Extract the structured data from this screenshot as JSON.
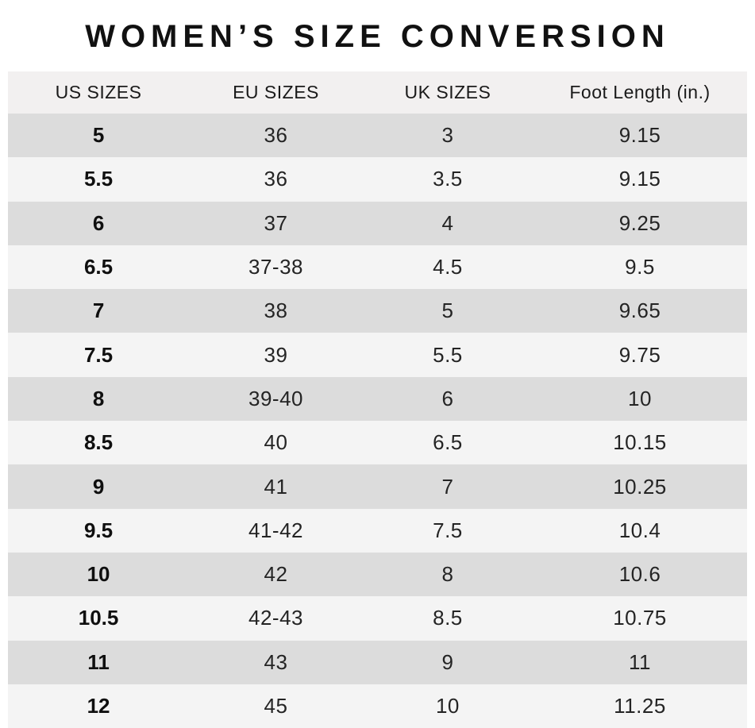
{
  "colors": {
    "page_bg": "#ffffff",
    "title_text": "#111111",
    "header_bg": "#f2f0f0",
    "header_text": "#1a1a1a",
    "row_dark": "#dcdcdc",
    "row_light": "#f4f4f4",
    "cell_text": "#242424",
    "us_text": "#0f0f0f"
  },
  "chart_data": {
    "type": "table",
    "title": "WOMEN’S SIZE CONVERSION",
    "columns": [
      "US SIZES",
      "EU SIZES",
      "UK SIZES",
      "Foot Length (in.)"
    ],
    "rows": [
      [
        "5",
        "36",
        "3",
        "9.15"
      ],
      [
        "5.5",
        "36",
        "3.5",
        "9.15"
      ],
      [
        "6",
        "37",
        "4",
        "9.25"
      ],
      [
        "6.5",
        "37-38",
        "4.5",
        "9.5"
      ],
      [
        "7",
        "38",
        "5",
        "9.65"
      ],
      [
        "7.5",
        "39",
        "5.5",
        "9.75"
      ],
      [
        "8",
        "39-40",
        "6",
        "10"
      ],
      [
        "8.5",
        "40",
        "6.5",
        "10.15"
      ],
      [
        "9",
        "41",
        "7",
        "10.25"
      ],
      [
        "9.5",
        "41-42",
        "7.5",
        "10.4"
      ],
      [
        "10",
        "42",
        "8",
        "10.6"
      ],
      [
        "10.5",
        "42-43",
        "8.5",
        "10.75"
      ],
      [
        "11",
        "43",
        "9",
        "11"
      ],
      [
        "12",
        "45",
        "10",
        "11.25"
      ]
    ],
    "layout": {
      "striped": true,
      "first_data_row_shade": "dark",
      "bold_column": "US SIZES",
      "alignment": "center",
      "column_width_pct": [
        24.5,
        23.5,
        23,
        29
      ]
    }
  }
}
